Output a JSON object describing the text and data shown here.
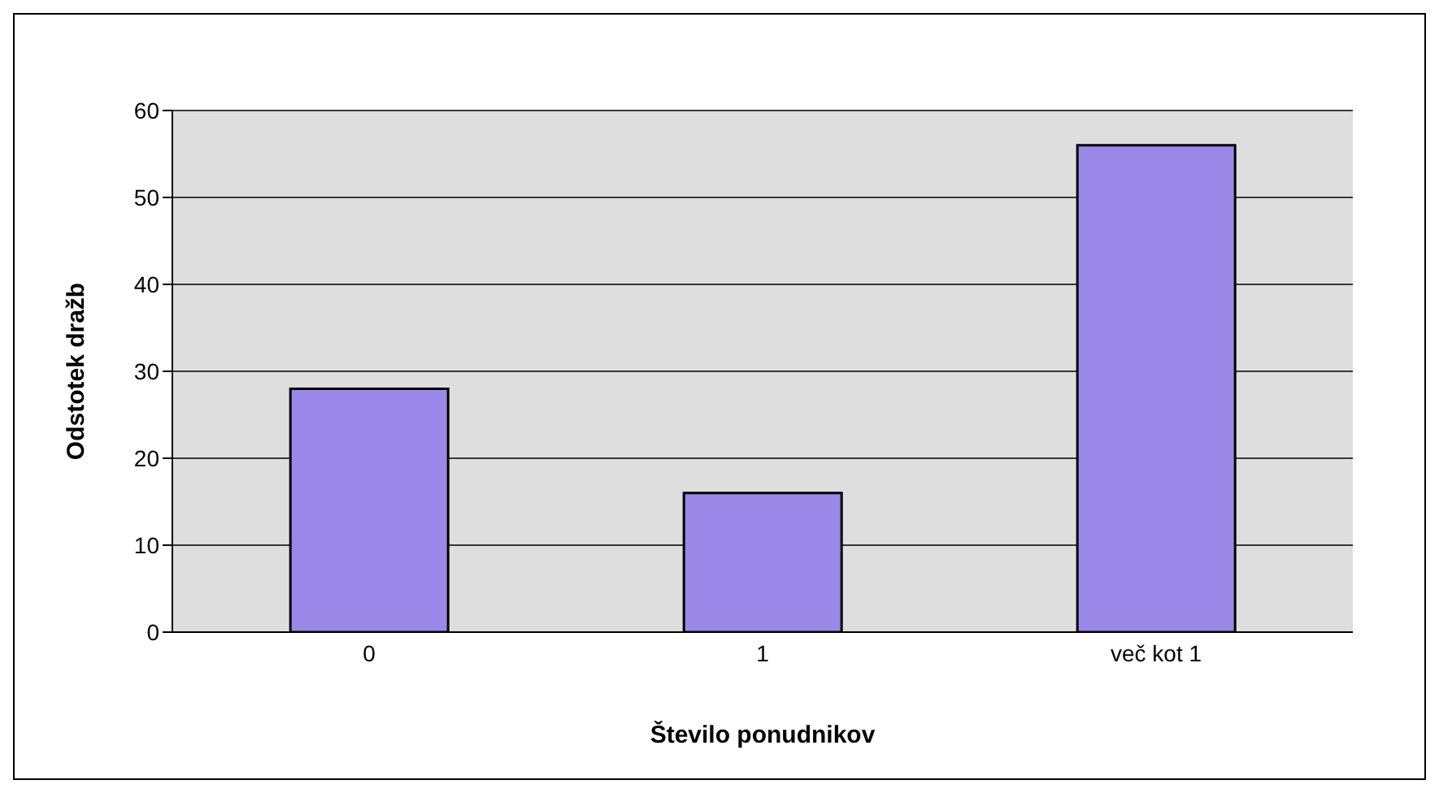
{
  "chart_data": {
    "type": "bar",
    "xlabel": "Število ponudnikov",
    "ylabel": "Odstotek dražb",
    "categories": [
      "0",
      "1",
      "več kot 1"
    ],
    "values": [
      28,
      16,
      56
    ],
    "color": "#9b87e8",
    "ylim": [
      0,
      60
    ],
    "yticks": [
      0,
      10,
      20,
      30,
      40,
      50,
      60
    ],
    "grid": "y",
    "legend": false
  }
}
